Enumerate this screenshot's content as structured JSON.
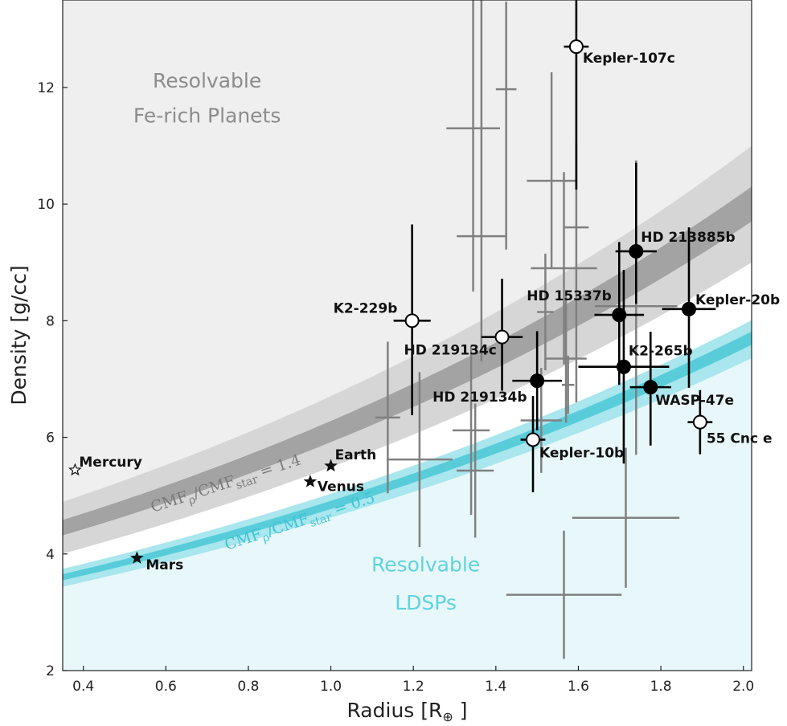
{
  "chart_data": {
    "type": "scatter",
    "xlabel": "Radius [R",
    "xlabel_symbol": "⊕",
    "xlabel_close": "]",
    "ylabel": "Density [g/cc]",
    "xlim": [
      0.35,
      2.02
    ],
    "ylim": [
      2,
      13.5
    ],
    "x_ticks": [
      0.4,
      0.6,
      0.8,
      1.0,
      1.2,
      1.4,
      1.6,
      1.8,
      2.0
    ],
    "x_tick_labels": [
      "0.4",
      "0.6",
      "0.8",
      "1.0",
      "1.2",
      "1.4",
      "1.6",
      "1.8",
      "2.0"
    ],
    "y_ticks": [
      2,
      4,
      6,
      8,
      10,
      12
    ],
    "y_tick_labels": [
      "2",
      "4",
      "6",
      "8",
      "10",
      "12"
    ],
    "regions": {
      "fe_rich": {
        "label_line1": "Resolvable",
        "label_line2": "Fe-rich Planets",
        "color": "#8c8c8c"
      },
      "ldsp": {
        "label_line1": "Resolvable",
        "label_line2": "LDSPs",
        "color": "#5fd3e0"
      }
    },
    "curves": [
      {
        "base": "CMF",
        "sub1": "ρ",
        "mid": "/CMF",
        "sub2": "star",
        "tail": " = 1.4",
        "color": "#7a7a7a",
        "density_at_0_35": 4.45,
        "density_at_2_02": 10.0
      },
      {
        "base": "CMF",
        "sub1": "ρ",
        "mid": "/CMF",
        "sub2": "star",
        "tail": " = 0.5",
        "color": "#3cc4d4",
        "density_at_0_35": 3.6,
        "density_at_2_02": 7.7
      }
    ],
    "solar_system": [
      {
        "name": "Mercury",
        "x": 0.38,
        "y": 5.44,
        "hollow": true
      },
      {
        "name": "Venus",
        "x": 0.95,
        "y": 5.24,
        "hollow": false
      },
      {
        "name": "Earth",
        "x": 1.0,
        "y": 5.51,
        "hollow": false
      },
      {
        "name": "Mars",
        "x": 0.53,
        "y": 3.93,
        "hollow": false
      }
    ],
    "labeled_planets": [
      {
        "name": "Kepler-107c",
        "x": 1.595,
        "y": 12.7,
        "xerr": 0.03,
        "yerr_low": 2.45,
        "yerr_high": 1.0,
        "filled": false
      },
      {
        "name": "K2-229b",
        "x": 1.197,
        "y": 8.0,
        "xerr": 0.045,
        "yerr_low": 1.62,
        "yerr_high": 1.65,
        "filled": false
      },
      {
        "name": "HD 219134c",
        "x": 1.415,
        "y": 7.72,
        "xerr": 0.05,
        "yerr_low": 0.92,
        "yerr_high": 1.0,
        "filled": false
      },
      {
        "name": "HD 219134b",
        "x": 1.5,
        "y": 6.97,
        "xerr": 0.06,
        "yerr_low": 0.85,
        "yerr_high": 0.85,
        "filled": true
      },
      {
        "name": "Kepler-10b",
        "x": 1.49,
        "y": 5.96,
        "xerr": 0.03,
        "yerr_low": 0.9,
        "yerr_high": 0.75,
        "filled": false
      },
      {
        "name": "HD 213885b",
        "x": 1.74,
        "y": 9.19,
        "xerr": 0.05,
        "yerr_low": 0.9,
        "yerr_high": 1.52,
        "filled": true
      },
      {
        "name": "HD 15337b",
        "x": 1.699,
        "y": 8.1,
        "xerr": 0.06,
        "yerr_low": 1.2,
        "yerr_high": 1.25,
        "filled": true
      },
      {
        "name": "Kepler-20b",
        "x": 1.868,
        "y": 8.2,
        "xerr": 0.065,
        "yerr_low": 1.35,
        "yerr_high": 1.4,
        "filled": true
      },
      {
        "name": "K2-265b",
        "x": 1.71,
        "y": 7.21,
        "xerr": 0.11,
        "yerr_low": 1.66,
        "yerr_high": 1.66,
        "filled": true
      },
      {
        "name": "WASP-47e",
        "x": 1.775,
        "y": 6.86,
        "xerr": 0.05,
        "yerr_low": 1.0,
        "yerr_high": 0.95,
        "filled": true
      },
      {
        "name": "55 Cnc e",
        "x": 1.895,
        "y": 6.26,
        "xerr": 0.03,
        "yerr_low": 0.55,
        "yerr_high": 0.55,
        "filled": false
      }
    ],
    "unlabeled_planets": [
      {
        "x": 1.345,
        "y": 11.3,
        "xerr": 0.065,
        "yerr_low": 2.8,
        "yerr_high": 2.2
      },
      {
        "x": 1.425,
        "y": 11.97,
        "xerr": 0.025,
        "yerr_low": 2.75,
        "yerr_high": 1.5
      },
      {
        "x": 1.535,
        "y": 10.4,
        "xerr": 0.06,
        "yerr_low": 1.5,
        "yerr_high": 1.86
      },
      {
        "x": 1.365,
        "y": 9.45,
        "xerr": 0.06,
        "yerr_low": 2.15,
        "yerr_high": 4.05
      },
      {
        "x": 1.595,
        "y": 9.6,
        "xerr": 0.03,
        "yerr_low": 3.0,
        "yerr_high": 1.45
      },
      {
        "x": 1.565,
        "y": 8.9,
        "xerr": 0.08,
        "yerr_low": 1.65,
        "yerr_high": 1.65
      },
      {
        "x": 1.74,
        "y": 8.25,
        "xerr": 0.1,
        "yerr_low": 2.55,
        "yerr_high": 2.5
      },
      {
        "x": 1.52,
        "y": 8.15,
        "xerr": 0.02,
        "yerr_low": 1.0,
        "yerr_high": 1.0
      },
      {
        "x": 1.57,
        "y": 7.35,
        "xerr": 0.05,
        "yerr_low": 1.1,
        "yerr_high": 1.1
      },
      {
        "x": 1.575,
        "y": 6.9,
        "xerr": 0.015,
        "yerr_low": 0.5,
        "yerr_high": 0.5
      },
      {
        "x": 1.138,
        "y": 6.34,
        "xerr": 0.03,
        "yerr_low": 1.3,
        "yerr_high": 1.3
      },
      {
        "x": 1.51,
        "y": 6.29,
        "xerr": 0.05,
        "yerr_low": 0.9,
        "yerr_high": 0.9
      },
      {
        "x": 1.34,
        "y": 6.12,
        "xerr": 0.045,
        "yerr_low": 1.45,
        "yerr_high": 1.45
      },
      {
        "x": 1.215,
        "y": 5.62,
        "xerr": 0.08,
        "yerr_low": 1.5,
        "yerr_high": 1.5
      },
      {
        "x": 1.35,
        "y": 5.43,
        "xerr": 0.045,
        "yerr_low": 1.15,
        "yerr_high": 1.15
      },
      {
        "x": 1.715,
        "y": 4.62,
        "xerr": 0.13,
        "yerr_low": 1.2,
        "yerr_high": 1.2
      },
      {
        "x": 1.565,
        "y": 3.3,
        "xerr": 0.14,
        "yerr_low": 1.1,
        "yerr_high": 1.1
      }
    ]
  }
}
